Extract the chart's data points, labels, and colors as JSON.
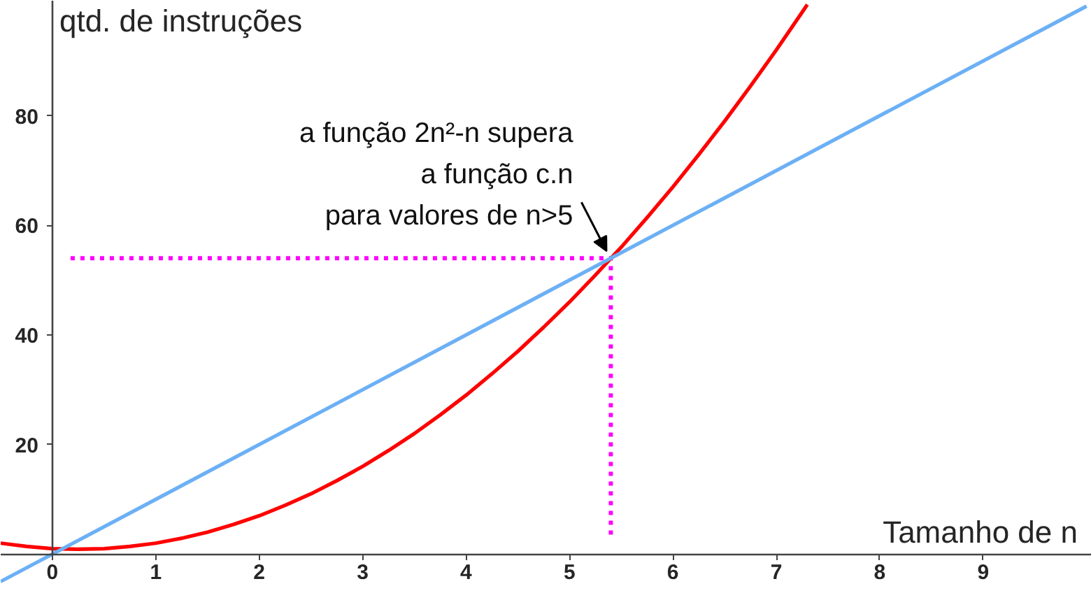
{
  "chart_data": {
    "type": "line",
    "xlabel": "Tamanho de n",
    "ylabel": "qtd. de instruções",
    "xlim": [
      -0.5,
      10.05
    ],
    "ylim": [
      -8.5,
      101
    ],
    "xticks": [
      0,
      1,
      2,
      3,
      4,
      5,
      6,
      7,
      8,
      9
    ],
    "yticks": [
      20,
      40,
      60,
      80
    ],
    "series": [
      {
        "color": "#ff0000",
        "x": [
          -0.5,
          -0.25,
          0,
          0.25,
          0.5,
          0.75,
          1,
          1.25,
          1.5,
          1.75,
          2,
          2.25,
          2.5,
          2.75,
          3,
          3.25,
          3.5,
          3.75,
          4,
          4.25,
          4.5,
          4.75,
          5,
          5.25,
          5.5,
          5.75,
          6,
          6.25,
          6.5,
          6.75,
          7,
          7.25,
          7.3
        ],
        "values": [
          2.0,
          1.4,
          1.0,
          0.9,
          1.0,
          1.4,
          2.0,
          2.9,
          4.0,
          5.4,
          7.0,
          8.9,
          11.0,
          13.4,
          16.0,
          18.9,
          22.0,
          25.4,
          29.0,
          32.9,
          37.0,
          41.4,
          46.0,
          50.9,
          56.0,
          61.4,
          67.0,
          72.9,
          79.0,
          85.4,
          92.0,
          98.9,
          100.3
        ]
      },
      {
        "color": "#6cb0f5",
        "x": [
          -0.5,
          10
        ],
        "values": [
          -5,
          100
        ]
      }
    ],
    "ref_lines": [
      {
        "axis": "y",
        "value": 54,
        "color": "#ff00ff",
        "line_style": "dotted"
      },
      {
        "axis": "x",
        "value": 5.4,
        "color": "#ff00ff",
        "line_style": "dotted"
      }
    ],
    "annotations": [
      {
        "text": "a função 2n²-n supera\na função c.n\npara valores de n>5",
        "x": 5.4,
        "y": 54
      }
    ]
  }
}
